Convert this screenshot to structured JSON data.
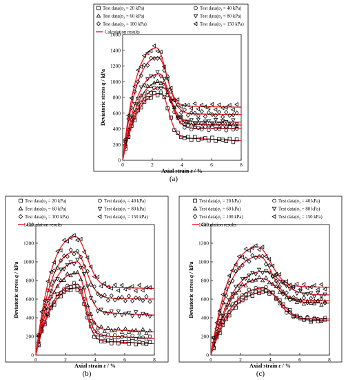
{
  "figure": {
    "legend_entries": [
      {
        "prefix": "Test data(",
        "sym": "σ",
        "sub": "3",
        "suffix": " = 20 kPa)",
        "marker": "square"
      },
      {
        "prefix": "Test data(",
        "sym": "σ",
        "sub": "3",
        "suffix": " = 40 kPa)",
        "marker": "circle"
      },
      {
        "prefix": "Test data(",
        "sym": "σ",
        "sub": "3",
        "suffix": " = 60 kPa)",
        "marker": "triangle-up"
      },
      {
        "prefix": "Test data(",
        "sym": "σ",
        "sub": "3",
        "suffix": " = 80 kPa)",
        "marker": "triangle-down"
      },
      {
        "prefix": "Test data(",
        "sym": "σ",
        "sub": "3",
        "suffix": " = 100 kPa)",
        "marker": "diamond"
      },
      {
        "prefix": "Test data(",
        "sym": "σ",
        "sub": "3",
        "suffix": " = 150 kPa)",
        "marker": "triangle-left"
      }
    ],
    "calc_label": "Calculation results",
    "calc_color": "#e8141c",
    "marker_color": "#000000",
    "ylabel_text": "Deviatoric stress ",
    "ylabel_sym": "q",
    "ylabel_unit": " / kPa",
    "xlabel_text": "Axial strain  ",
    "xlabel_sym": "ε",
    "xlabel_unit": " / %"
  },
  "chart_data": [
    {
      "panel": "(a)",
      "type": "line",
      "xlim": [
        0,
        8
      ],
      "ylim": [
        0,
        1600
      ],
      "xticks": [
        0,
        2,
        4,
        6,
        8
      ],
      "yticks": [
        0,
        200,
        400,
        600,
        800,
        1000,
        1200,
        1400,
        1600
      ],
      "series": [
        {
          "name": "σ3 = 20 kPa",
          "marker": "square",
          "peak": [
            2.6,
            850
          ],
          "residual": 300,
          "drop": "sharp",
          "sigma": 0.5,
          "k_post": 1.2
        },
        {
          "name": "σ3 = 40 kPa",
          "marker": "circle",
          "peak": [
            2.7,
            930
          ],
          "residual": 430,
          "drop": "gradual",
          "sigma": 0.6,
          "k_post": 0.8
        },
        {
          "name": "σ3 = 60 kPa",
          "marker": "triangle-up",
          "peak": [
            2.6,
            1000
          ],
          "residual": 480,
          "drop": "gradual",
          "sigma": 0.65,
          "k_post": 0.8
        },
        {
          "name": "σ3 = 80 kPa",
          "marker": "triangle-down",
          "peak": [
            2.5,
            1100
          ],
          "residual": 520,
          "drop": "gradual",
          "sigma": 0.6,
          "k_post": 0.75
        },
        {
          "name": "σ3 = 100 kPa",
          "marker": "diamond",
          "peak": [
            2.4,
            1310
          ],
          "residual": 620,
          "drop": "gradual",
          "sigma": 0.65,
          "k_post": 0.6
        },
        {
          "name": "σ3 = 150 kPa",
          "marker": "triangle-left",
          "peak": [
            2.3,
            1430
          ],
          "residual": 720,
          "drop": "gradual",
          "sigma": 0.6,
          "k_post": 0.55
        }
      ]
    },
    {
      "panel": "(b)",
      "type": "line",
      "xlim": [
        0,
        8
      ],
      "ylim": [
        0,
        1400
      ],
      "xticks": [
        0,
        2,
        4,
        6,
        8
      ],
      "yticks": [
        0,
        200,
        400,
        600,
        800,
        1000,
        1200,
        1400
      ],
      "series": [
        {
          "name": "σ3 = 20 kPa",
          "marker": "square",
          "peak": [
            2.8,
            720
          ],
          "residual": 160,
          "drop": "sharp",
          "sigma": 0.55,
          "k_post": 0.9
        },
        {
          "name": "σ3 = 40 kPa",
          "marker": "circle",
          "peak": [
            2.8,
            760
          ],
          "residual": 220,
          "drop": "sharp",
          "sigma": 0.55,
          "k_post": 1.0
        },
        {
          "name": "σ3 = 60 kPa",
          "marker": "triangle-up",
          "peak": [
            2.8,
            880
          ],
          "residual": 290,
          "drop": "sharp",
          "sigma": 0.55,
          "k_post": 1.0
        },
        {
          "name": "σ3 = 80 kPa",
          "marker": "triangle-down",
          "peak": [
            2.8,
            1000
          ],
          "residual": 470,
          "drop": "sharp",
          "sigma": 0.6,
          "k_post": 1.0
        },
        {
          "name": "σ3 = 100 kPa",
          "marker": "diamond",
          "peak": [
            2.7,
            1110
          ],
          "residual": 640,
          "drop": "gradual",
          "sigma": 0.7,
          "k_post": 0.6
        },
        {
          "name": "σ3 = 150 kPa",
          "marker": "triangle-left",
          "peak": [
            2.7,
            1270
          ],
          "residual": 760,
          "drop": "gradual",
          "sigma": 0.75,
          "k_post": 0.5
        }
      ]
    },
    {
      "panel": "(c)",
      "type": "line",
      "xlim": [
        0,
        8
      ],
      "ylim": [
        0,
        1400
      ],
      "xticks": [
        0,
        2,
        4,
        6,
        8
      ],
      "yticks": [
        0,
        200,
        400,
        600,
        800,
        1000,
        1200,
        1400
      ],
      "series": [
        {
          "name": "σ3 = 20 kPa",
          "marker": "square",
          "peak": [
            3.8,
            680
          ],
          "residual": 390,
          "drop": "gradual",
          "sigma": 1.0,
          "k_post": 0.5
        },
        {
          "name": "σ3 = 40 kPa",
          "marker": "circle",
          "peak": [
            3.6,
            720
          ],
          "residual": 410,
          "drop": "gradual",
          "sigma": 0.9,
          "k_post": 0.55
        },
        {
          "name": "σ3 = 60 kPa",
          "marker": "triangle-up",
          "peak": [
            3.5,
            820
          ],
          "residual": 590,
          "drop": "gradual",
          "sigma": 1.0,
          "k_post": 0.5
        },
        {
          "name": "σ3 = 80 kPa",
          "marker": "triangle-down",
          "peak": [
            3.6,
            900
          ],
          "residual": 680,
          "drop": "gradual",
          "sigma": 1.1,
          "k_post": 0.4
        },
        {
          "name": "σ3 = 100 kPa",
          "marker": "diamond",
          "peak": [
            3.3,
            1060
          ],
          "residual": 620,
          "drop": "gradual",
          "sigma": 0.85,
          "k_post": 0.55
        },
        {
          "name": "σ3 = 150 kPa",
          "marker": "triangle-left",
          "peak": [
            3.2,
            1160
          ],
          "residual": 770,
          "drop": "gradual",
          "sigma": 0.85,
          "k_post": 0.45
        }
      ]
    }
  ]
}
